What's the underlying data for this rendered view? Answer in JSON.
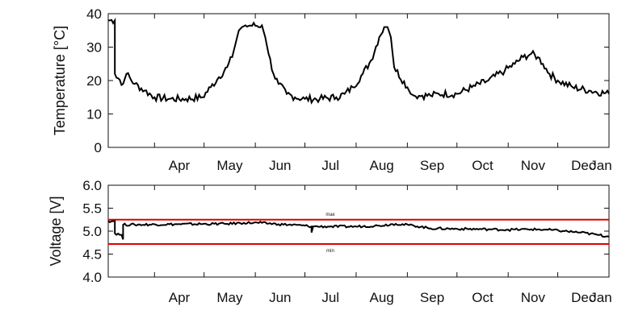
{
  "chart_data": [
    {
      "type": "line",
      "title": "",
      "xlabel": "",
      "ylabel": "Temperature [°C]",
      "xlim": [
        "2013-03-04",
        "2014-01-01"
      ],
      "ylim": [
        0,
        40
      ],
      "yticks": [
        "0",
        "10",
        "20",
        "30",
        "40"
      ],
      "xticks": [
        {
          "label": "Apr",
          "date": "2013-04-01"
        },
        {
          "label": "May",
          "date": "2013-05-01"
        },
        {
          "label": "Jun",
          "date": "2013-06-01"
        },
        {
          "label": "Jul",
          "date": "2013-07-01"
        },
        {
          "label": "Aug",
          "date": "2013-08-01"
        },
        {
          "label": "Sep",
          "date": "2013-09-01"
        },
        {
          "label": "Oct",
          "date": "2013-10-01"
        },
        {
          "label": "Nov",
          "date": "2013-11-01"
        },
        {
          "label": "Dec",
          "date": "2013-12-01"
        },
        {
          "label": "Jan",
          "date": "2014-01-01"
        }
      ],
      "grid": false,
      "series": [
        {
          "color": "#000000",
          "x": [
            "2013-03-04",
            "2013-03-08",
            "2013-03-08",
            "2013-03-13",
            "2013-03-15",
            "2013-03-20",
            "2013-03-26",
            "2013-04-01",
            "2013-04-10",
            "2013-04-20",
            "2013-04-30",
            "2013-05-05",
            "2013-05-10",
            "2013-05-15",
            "2013-05-18",
            "2013-05-20",
            "2013-05-22",
            "2013-05-24",
            "2013-05-26",
            "2013-06-05",
            "2013-06-07",
            "2013-06-09",
            "2013-06-12",
            "2013-06-15",
            "2013-06-20",
            "2013-06-25",
            "2013-07-01",
            "2013-07-10",
            "2013-07-20",
            "2013-07-25",
            "2013-07-30",
            "2013-08-05",
            "2013-08-10",
            "2013-08-15",
            "2013-08-18",
            "2013-08-20",
            "2013-08-22",
            "2013-08-24",
            "2013-09-01",
            "2013-09-03",
            "2013-09-05",
            "2013-09-10",
            "2013-09-15",
            "2013-09-20",
            "2013-10-01",
            "2013-10-10",
            "2013-10-20",
            "2013-10-30",
            "2013-11-05",
            "2013-11-10",
            "2013-11-15",
            "2013-11-19",
            "2013-11-22",
            "2013-11-26",
            "2013-12-01",
            "2013-12-10",
            "2013-12-20",
            "2014-01-01"
          ],
          "y": [
            38,
            38,
            22,
            19,
            22,
            19,
            17,
            15,
            14.5,
            14.5,
            15,
            18,
            21,
            24,
            27,
            31,
            35,
            36,
            36.5,
            36.5,
            33,
            28,
            22,
            19,
            16,
            15,
            14.5,
            14.5,
            15,
            16,
            18,
            22,
            26,
            33,
            36,
            36,
            33,
            24,
            18,
            16,
            15.5,
            15.5,
            15.5,
            16,
            16,
            18,
            20,
            23,
            25,
            27,
            28,
            27,
            25,
            22,
            20,
            18,
            17,
            16
          ]
        }
      ]
    },
    {
      "type": "line",
      "title": "",
      "xlabel": "",
      "ylabel": "Voltage [V]",
      "xlim": [
        "2013-03-04",
        "2014-01-01"
      ],
      "ylim": [
        4.0,
        6.0
      ],
      "yticks": [
        "4.0",
        "4.5",
        "5.0",
        "5.5",
        "6.0"
      ],
      "xticks": [
        {
          "label": "Apr",
          "date": "2013-04-01"
        },
        {
          "label": "May",
          "date": "2013-05-01"
        },
        {
          "label": "Jun",
          "date": "2013-06-01"
        },
        {
          "label": "Jul",
          "date": "2013-07-01"
        },
        {
          "label": "Aug",
          "date": "2013-08-01"
        },
        {
          "label": "Sep",
          "date": "2013-09-01"
        },
        {
          "label": "Oct",
          "date": "2013-10-01"
        },
        {
          "label": "Nov",
          "date": "2013-11-01"
        },
        {
          "label": "Dec",
          "date": "2013-12-01"
        },
        {
          "label": "Jan",
          "date": "2014-01-01"
        }
      ],
      "grid": false,
      "reference_lines": [
        {
          "label": "max",
          "y": 5.25,
          "color": "#e00000"
        },
        {
          "label": "min",
          "y": 4.72,
          "color": "#e00000"
        }
      ],
      "series": [
        {
          "color": "#000000",
          "x": [
            "2013-03-04",
            "2013-03-08",
            "2013-03-08",
            "2013-03-12",
            "2013-03-13",
            "2013-03-13",
            "2013-03-20",
            "2013-04-15",
            "2013-05-15",
            "2013-05-25",
            "2013-06-05",
            "2013-06-15",
            "2013-07-01",
            "2013-07-05",
            "2013-07-05",
            "2013-07-06",
            "2013-07-15",
            "2013-08-01",
            "2013-08-15",
            "2013-08-25",
            "2013-09-05",
            "2013-09-15",
            "2013-10-01",
            "2013-10-20",
            "2013-11-01",
            "2013-11-15",
            "2013-11-25",
            "2013-12-05",
            "2013-12-15",
            "2013-12-25",
            "2014-01-01"
          ],
          "y": [
            5.22,
            5.22,
            4.95,
            4.92,
            4.82,
            5.14,
            5.14,
            5.15,
            5.16,
            5.18,
            5.18,
            5.15,
            5.12,
            5.1,
            4.97,
            5.1,
            5.1,
            5.1,
            5.12,
            5.16,
            5.12,
            5.06,
            5.05,
            5.04,
            5.03,
            5.04,
            5.03,
            5.0,
            4.97,
            4.92,
            4.88
          ]
        }
      ]
    }
  ]
}
